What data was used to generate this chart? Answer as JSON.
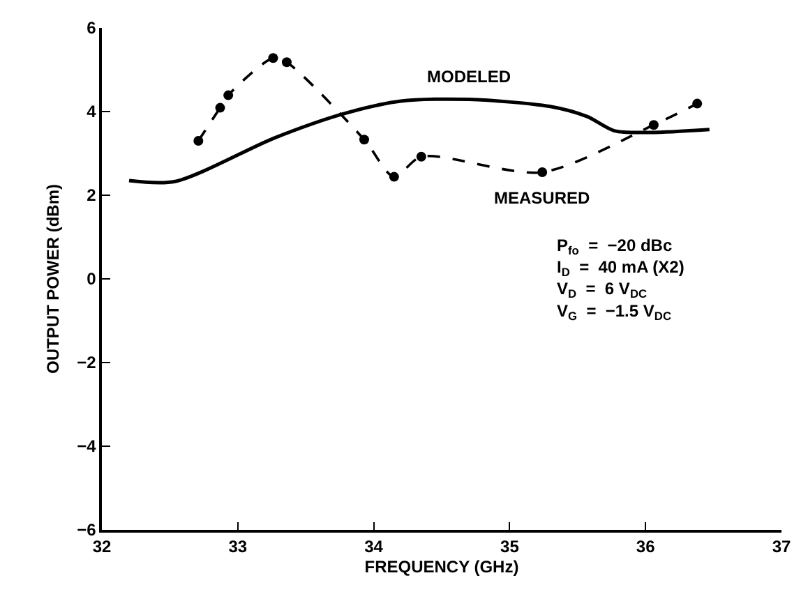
{
  "chart_data": {
    "type": "line",
    "xlabel": "FREQUENCY (GHz)",
    "ylabel": "OUTPUT POWER (dBm)",
    "xlim": [
      32,
      37
    ],
    "xticks": [
      32,
      33,
      34,
      35,
      36,
      37
    ],
    "ylim": [
      -6,
      6
    ],
    "yticks": [
      -6,
      -4,
      -2,
      0,
      2,
      4,
      6
    ],
    "legend": false,
    "series": [
      {
        "name": "MODELED",
        "color": "#000000",
        "line_style": "solid",
        "marker": "none",
        "x": [
          32.2,
          32.54,
          33.27,
          33.77,
          34.2,
          34.7,
          35.3,
          35.57,
          35.77,
          36.04,
          36.47
        ],
        "values": [
          2.35,
          2.33,
          3.37,
          3.94,
          4.25,
          4.29,
          4.12,
          3.88,
          3.54,
          3.5,
          3.57
        ]
      },
      {
        "name": "MEASURED",
        "color": "#000000",
        "line_style": "dashed",
        "marker": "circle",
        "x": [
          32.71,
          32.87,
          32.93,
          33.26,
          33.36,
          33.93,
          34.15,
          34.35,
          35.24,
          36.06,
          36.38
        ],
        "values": [
          3.3,
          4.09,
          4.39,
          5.28,
          5.18,
          3.33,
          2.44,
          2.92,
          2.55,
          3.68,
          4.19
        ]
      }
    ],
    "annotations": [
      "P$_{fo}$  =  −20 dBc\nI$_{D}$  =  40 mA (X2)\nV$_{D}$  =  6 V$_{DC}$\nV$_{G}$  =  −1.5 V$_{DC}$"
    ]
  }
}
